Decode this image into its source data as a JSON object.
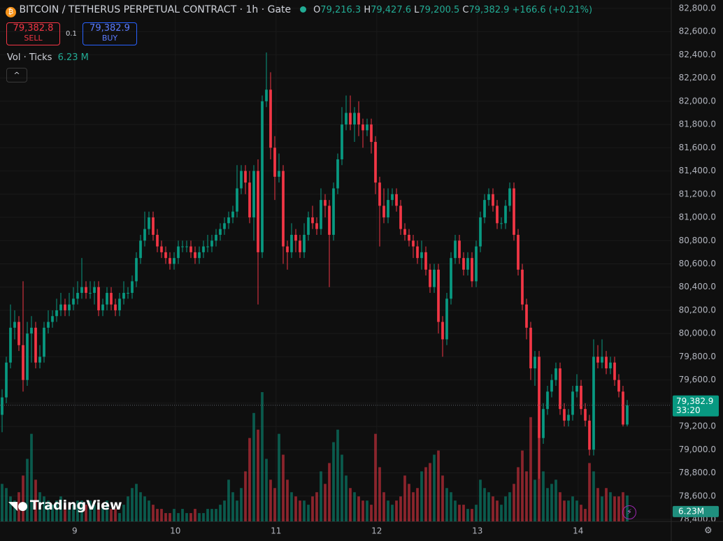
{
  "header": {
    "symbol": "BITCOIN / TETHERUS PERPETUAL CONTRACT · 1h · Gate",
    "ohlc": [
      [
        "O",
        "79,216.3"
      ],
      [
        "H",
        "79,427.6"
      ],
      [
        "L",
        "79,200.5"
      ],
      [
        "C",
        "79,382.9"
      ]
    ],
    "change": "+166.6 (+0.21%)",
    "sell_price": "79,382.8",
    "sell": "SELL",
    "qty": "0.1",
    "buy_price": "79,382.9",
    "buy": "BUY",
    "vol_title": "Vol · Ticks",
    "vol_value": "6.23 M",
    "logo": "TradingView",
    "price_tag": "79,382.9",
    "countdown": "33:20",
    "volume_tag": "6.23M"
  },
  "chart_data": {
    "type": "candlestick",
    "up_color": "#089981",
    "down_color": "#f23645",
    "grid": true,
    "xlim": [
      -0.5,
      159.5
    ],
    "xticks": [
      {
        "value": 17.3,
        "label": "9"
      },
      {
        "value": 41.3,
        "label": "10"
      },
      {
        "value": 65.3,
        "label": "11"
      },
      {
        "value": 89.3,
        "label": "12"
      },
      {
        "value": 113.3,
        "label": "13"
      },
      {
        "value": 137.3,
        "label": "14"
      }
    ],
    "ylim": [
      78382,
      82872
    ],
    "yticks": [
      {
        "value": 78400,
        "label": "78,400.0"
      },
      {
        "value": 78600,
        "label": "78,600.0"
      },
      {
        "value": 78800,
        "label": "78,800.0"
      },
      {
        "value": 79000,
        "label": "79,000.0"
      },
      {
        "value": 79200,
        "label": "79,200.0"
      },
      {
        "value": 79400,
        "label": "79,400.0"
      },
      {
        "value": 79600,
        "label": "79,600.0"
      },
      {
        "value": 79800,
        "label": "79,800.0"
      },
      {
        "value": 80000,
        "label": "80,000.0"
      },
      {
        "value": 80200,
        "label": "80,200.0"
      },
      {
        "value": 80400,
        "label": "80,400.0"
      },
      {
        "value": 80600,
        "label": "80,600.0"
      },
      {
        "value": 80800,
        "label": "80,800.0"
      },
      {
        "value": 81000,
        "label": "81,000.0"
      },
      {
        "value": 81200,
        "label": "81,200.0"
      },
      {
        "value": 81400,
        "label": "81,400.0"
      },
      {
        "value": 81600,
        "label": "81,600.0"
      },
      {
        "value": 81800,
        "label": "81,800.0"
      },
      {
        "value": 82000,
        "label": "82,000.0"
      },
      {
        "value": 82200,
        "label": "82,200.0"
      },
      {
        "value": 82400,
        "label": "82,400.0"
      },
      {
        "value": 82600,
        "label": "82,600.0"
      },
      {
        "value": 82800,
        "label": "82,800.0"
      }
    ],
    "y2lim": [
      0,
      125
    ],
    "open": [
      79300,
      79450,
      79750,
      80050,
      80100,
      79900,
      79600,
      80000,
      80050,
      79750,
      79800,
      80050,
      80100,
      80150,
      80200,
      80250,
      80200,
      80250,
      80300,
      80350,
      80400,
      80350,
      80350,
      80400,
      80200,
      80250,
      80350,
      80250,
      80200,
      80300,
      80350,
      80350,
      80450,
      80650,
      80800,
      80900,
      81000,
      80850,
      80750,
      80700,
      80650,
      80600,
      80650,
      80750,
      80750,
      80750,
      80700,
      80650,
      80700,
      80750,
      80750,
      80800,
      80850,
      80900,
      80950,
      81000,
      81050,
      81250,
      81400,
      81300,
      81000,
      81400,
      80700,
      82000,
      82100,
      81600,
      81350,
      81400,
      80750,
      80700,
      80850,
      80800,
      80700,
      80850,
      81000,
      80950,
      80900,
      81150,
      81100,
      80850,
      81250,
      81500,
      81800,
      81900,
      81800,
      81900,
      81800,
      81750,
      81800,
      81650,
      81300,
      81100,
      81000,
      81150,
      81200,
      81100,
      80900,
      80850,
      80800,
      80750,
      80650,
      80700,
      80550,
      80400,
      80550,
      80100,
      79950,
      80300,
      80650,
      80800,
      80650,
      80550,
      80650,
      80450,
      80750,
      81000,
      81150,
      81200,
      81100,
      80950,
      80950,
      81100,
      81250,
      80850,
      80550,
      80250,
      80050,
      79700,
      79800,
      79100,
      79350,
      79500,
      79600,
      79700,
      79350,
      79250,
      79300,
      79500,
      79550,
      79350,
      79250,
      79000,
      79800,
      79750,
      79800,
      79700,
      79750,
      79600,
      79500,
      79216.3
    ],
    "high": [
      79520,
      79800,
      80250,
      80200,
      80150,
      80450,
      80100,
      80150,
      80100,
      79900,
      80100,
      80200,
      80200,
      80300,
      80350,
      80300,
      80350,
      80400,
      80450,
      80650,
      80450,
      80450,
      80450,
      80450,
      80300,
      80400,
      80400,
      80300,
      80350,
      80450,
      80400,
      80500,
      80700,
      80850,
      81050,
      81050,
      81050,
      80900,
      80800,
      80750,
      80700,
      80700,
      80800,
      80800,
      80800,
      80800,
      80750,
      80750,
      80800,
      80850,
      80850,
      80900,
      80950,
      81000,
      81050,
      81100,
      81450,
      81450,
      81450,
      81400,
      81450,
      81500,
      82050,
      82420,
      82250,
      81700,
      81550,
      81450,
      80800,
      80950,
      80900,
      80850,
      80950,
      81050,
      81100,
      81000,
      81250,
      81200,
      81150,
      81300,
      81550,
      81950,
      82050,
      82050,
      81950,
      82000,
      81850,
      81850,
      81850,
      81700,
      81350,
      81250,
      81250,
      81250,
      81250,
      81150,
      80950,
      80900,
      80850,
      80800,
      80800,
      80750,
      80600,
      80600,
      80600,
      80150,
      80350,
      80700,
      80850,
      80850,
      80700,
      80700,
      80700,
      80800,
      81050,
      81200,
      81250,
      81250,
      81150,
      81000,
      81150,
      81300,
      81300,
      80900,
      80600,
      80300,
      80100,
      79850,
      79850,
      79400,
      79550,
      79650,
      79750,
      79750,
      79400,
      79350,
      79550,
      79650,
      79600,
      79400,
      79300,
      79950,
      79900,
      79950,
      79850,
      79800,
      79800,
      79650,
      79550,
      79427.6
    ],
    "low": [
      79150,
      79400,
      79700,
      79950,
      79850,
      79500,
      79550,
      79750,
      79700,
      79700,
      79750,
      80000,
      80050,
      80100,
      80150,
      80150,
      80150,
      80200,
      80250,
      80300,
      80300,
      80300,
      80250,
      80150,
      80150,
      80200,
      80200,
      80150,
      80150,
      80250,
      80300,
      80300,
      80400,
      80600,
      80750,
      80850,
      80800,
      80700,
      80650,
      80600,
      80550,
      80550,
      80600,
      80700,
      80700,
      80650,
      80600,
      80600,
      80650,
      80700,
      80700,
      80750,
      80800,
      80850,
      80900,
      80950,
      81000,
      81200,
      81200,
      80950,
      80800,
      80250,
      80650,
      81950,
      81500,
      81150,
      81300,
      80600,
      80550,
      80650,
      80700,
      80650,
      80650,
      80800,
      80900,
      80850,
      80850,
      81000,
      80400,
      80800,
      81200,
      81450,
      81750,
      81750,
      81650,
      81700,
      81600,
      81700,
      81550,
      81200,
      80750,
      80950,
      80950,
      81100,
      81050,
      80850,
      80800,
      80750,
      80650,
      80600,
      80550,
      80500,
      80350,
      80350,
      80000,
      79800,
      79900,
      80250,
      80600,
      80600,
      80500,
      80500,
      80400,
      80400,
      80700,
      80950,
      81100,
      81050,
      80900,
      80900,
      80900,
      81050,
      80800,
      80500,
      80200,
      79950,
      79600,
      79550,
      78750,
      79050,
      79300,
      79450,
      79550,
      79300,
      79200,
      79200,
      79250,
      79450,
      79300,
      79200,
      78950,
      78950,
      79700,
      79700,
      79650,
      79650,
      79550,
      79450,
      79200,
      79200.5
    ],
    "close": [
      79450,
      79750,
      80050,
      80100,
      79900,
      79600,
      80000,
      80050,
      79750,
      79800,
      80050,
      80100,
      80150,
      80200,
      80250,
      80200,
      80250,
      80300,
      80350,
      80400,
      80350,
      80350,
      80400,
      80200,
      80250,
      80350,
      80250,
      80200,
      80300,
      80350,
      80350,
      80450,
      80650,
      80800,
      80900,
      81000,
      80850,
      80750,
      80700,
      80650,
      80600,
      80650,
      80750,
      80750,
      80750,
      80700,
      80650,
      80700,
      80750,
      80750,
      80800,
      80850,
      80900,
      80950,
      81000,
      81050,
      81250,
      81400,
      81300,
      81000,
      81400,
      80700,
      82000,
      82100,
      81600,
      81350,
      81400,
      80750,
      80700,
      80850,
      80800,
      80700,
      80850,
      81000,
      80950,
      80900,
      81150,
      81100,
      80850,
      81250,
      81500,
      81800,
      81900,
      81800,
      81900,
      81800,
      81750,
      81800,
      81650,
      81300,
      81100,
      81000,
      81150,
      81200,
      81100,
      80900,
      80850,
      80800,
      80750,
      80650,
      80700,
      80550,
      80400,
      80550,
      80100,
      79950,
      80300,
      80650,
      80800,
      80650,
      80550,
      80650,
      80450,
      80750,
      81000,
      81150,
      81200,
      81100,
      80950,
      80950,
      81100,
      81250,
      80850,
      80550,
      80250,
      80050,
      79700,
      79800,
      79100,
      79350,
      79500,
      79600,
      79700,
      79350,
      79250,
      79300,
      79500,
      79550,
      79350,
      79250,
      79000,
      79800,
      79750,
      79800,
      79700,
      79750,
      79600,
      79500,
      79216.3,
      79382.9
    ],
    "volume": [
      9,
      8,
      6,
      5,
      7,
      11,
      15,
      21,
      10,
      7,
      6,
      5,
      4,
      5,
      6,
      4,
      3,
      4,
      5,
      5,
      4,
      5,
      4,
      3,
      4,
      5,
      3,
      3,
      2,
      4,
      6,
      8,
      9,
      7,
      6,
      5,
      4,
      3,
      3,
      2,
      2,
      3,
      2,
      3,
      2,
      2,
      3,
      2,
      2,
      3,
      3,
      3,
      4,
      5,
      10,
      7,
      5,
      8,
      12,
      20,
      26,
      22,
      31,
      15,
      10,
      8,
      21,
      16,
      10,
      7,
      6,
      5,
      5,
      4,
      6,
      7,
      12,
      9,
      14,
      19,
      22,
      16,
      11,
      8,
      7,
      6,
      5,
      5,
      4,
      21,
      13,
      7,
      5,
      4,
      5,
      6,
      11,
      9,
      7,
      8,
      12,
      13,
      14,
      16,
      17,
      11,
      8,
      7,
      5,
      4,
      4,
      3,
      3,
      4,
      10,
      8,
      7,
      6,
      5,
      4,
      6,
      7,
      9,
      13,
      17,
      12,
      25,
      10,
      20,
      12,
      8,
      9,
      10,
      7,
      5,
      5,
      6,
      5,
      4,
      3,
      14,
      12,
      8,
      6,
      8,
      7,
      6,
      6,
      7,
      6.23
    ]
  }
}
